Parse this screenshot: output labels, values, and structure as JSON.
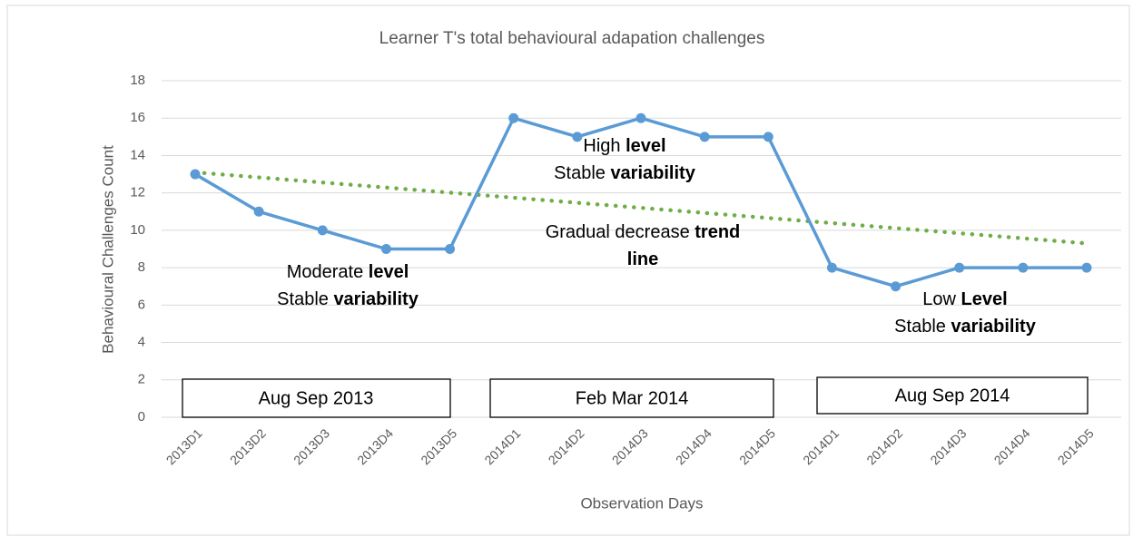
{
  "chart_data": {
    "type": "line",
    "title": "Learner T's total behavioural adapation challenges",
    "xlabel": "Observation Days",
    "ylabel": "Behavioural Challenges Count",
    "categories": [
      "2013D1",
      "2013D2",
      "2013D3",
      "2013D4",
      "2013D5",
      "2014D1",
      "2014D2",
      "2014D3",
      "2014D4",
      "2014D5",
      "2014D1",
      "2014D2",
      "2014D3",
      "2014D4",
      "2014D5"
    ],
    "values": [
      13,
      11,
      10,
      9,
      9,
      16,
      15,
      16,
      15,
      15,
      8,
      7,
      8,
      8,
      8
    ],
    "color": "#5b9bd5",
    "trendline": "linear",
    "trend_color": "#70ad47",
    "ylim": [
      0,
      18
    ],
    "yticks": [
      0,
      2,
      4,
      6,
      8,
      10,
      12,
      14,
      16,
      18
    ],
    "grid": true,
    "periods": [
      "Aug Sep 2013",
      "Feb Mar 2014",
      "Aug Sep 2014"
    ],
    "annotations": [
      {
        "lines": [
          [
            {
              "text": "Moderate "
            },
            {
              "text": "level",
              "bold": true
            }
          ],
          [
            {
              "text": "Stable "
            },
            {
              "text": "variability",
              "bold": true
            }
          ]
        ]
      },
      {
        "lines": [
          [
            {
              "text": "High "
            },
            {
              "text": "level",
              "bold": true
            }
          ],
          [
            {
              "text": "Stable "
            },
            {
              "text": "variability",
              "bold": true
            }
          ]
        ]
      },
      {
        "lines": [
          [
            {
              "text": "Gradual decrease "
            },
            {
              "text": "trend",
              "bold": true
            }
          ],
          [
            {
              "text": "line",
              "bold": true
            }
          ]
        ]
      },
      {
        "lines": [
          [
            {
              "text": "Low "
            },
            {
              "text": "Level",
              "bold": true
            }
          ],
          [
            {
              "text": "Stable "
            },
            {
              "text": "variability",
              "bold": true
            }
          ]
        ]
      }
    ]
  }
}
